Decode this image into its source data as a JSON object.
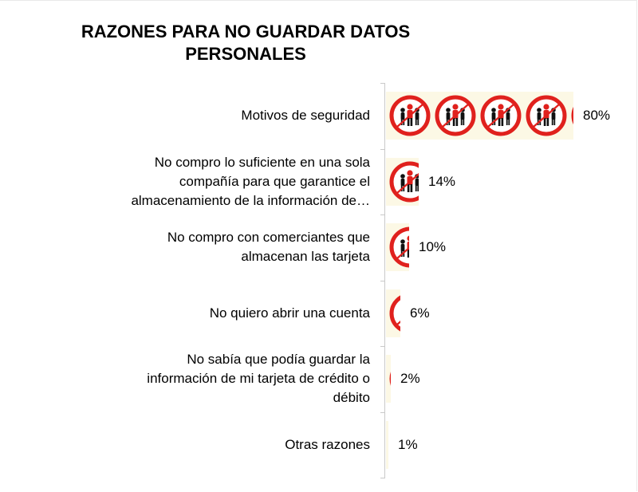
{
  "chart_data": {
    "type": "bar",
    "orientation": "horizontal",
    "title": [
      "RAZONES PARA NO GUARDAR DATOS",
      "PERSONALES"
    ],
    "categories": [
      [
        "Motivos de seguridad"
      ],
      [
        "No compro lo suficiente en una sola",
        "compañía para que garantice el",
        "almacenamiento de la información de…"
      ],
      [
        "No compro con comerciantes que",
        "almacenan las tarjeta"
      ],
      [
        "No quiero abrir una cuenta"
      ],
      [
        "No sabía que podía guardar la",
        "información de mi tarjeta de crédito o",
        "débito"
      ],
      [
        "Otras razones"
      ]
    ],
    "values": [
      80,
      14,
      10,
      6,
      2,
      1
    ],
    "value_labels": [
      "80%",
      "14%",
      "10%",
      "6%",
      "2%",
      "1%"
    ],
    "xlim": [
      0,
      100
    ],
    "grid": false,
    "legend": "none",
    "bar_fill": "#fcf8e5",
    "icon": "no-entry-people-icon",
    "icon_color": "#e0211d"
  }
}
